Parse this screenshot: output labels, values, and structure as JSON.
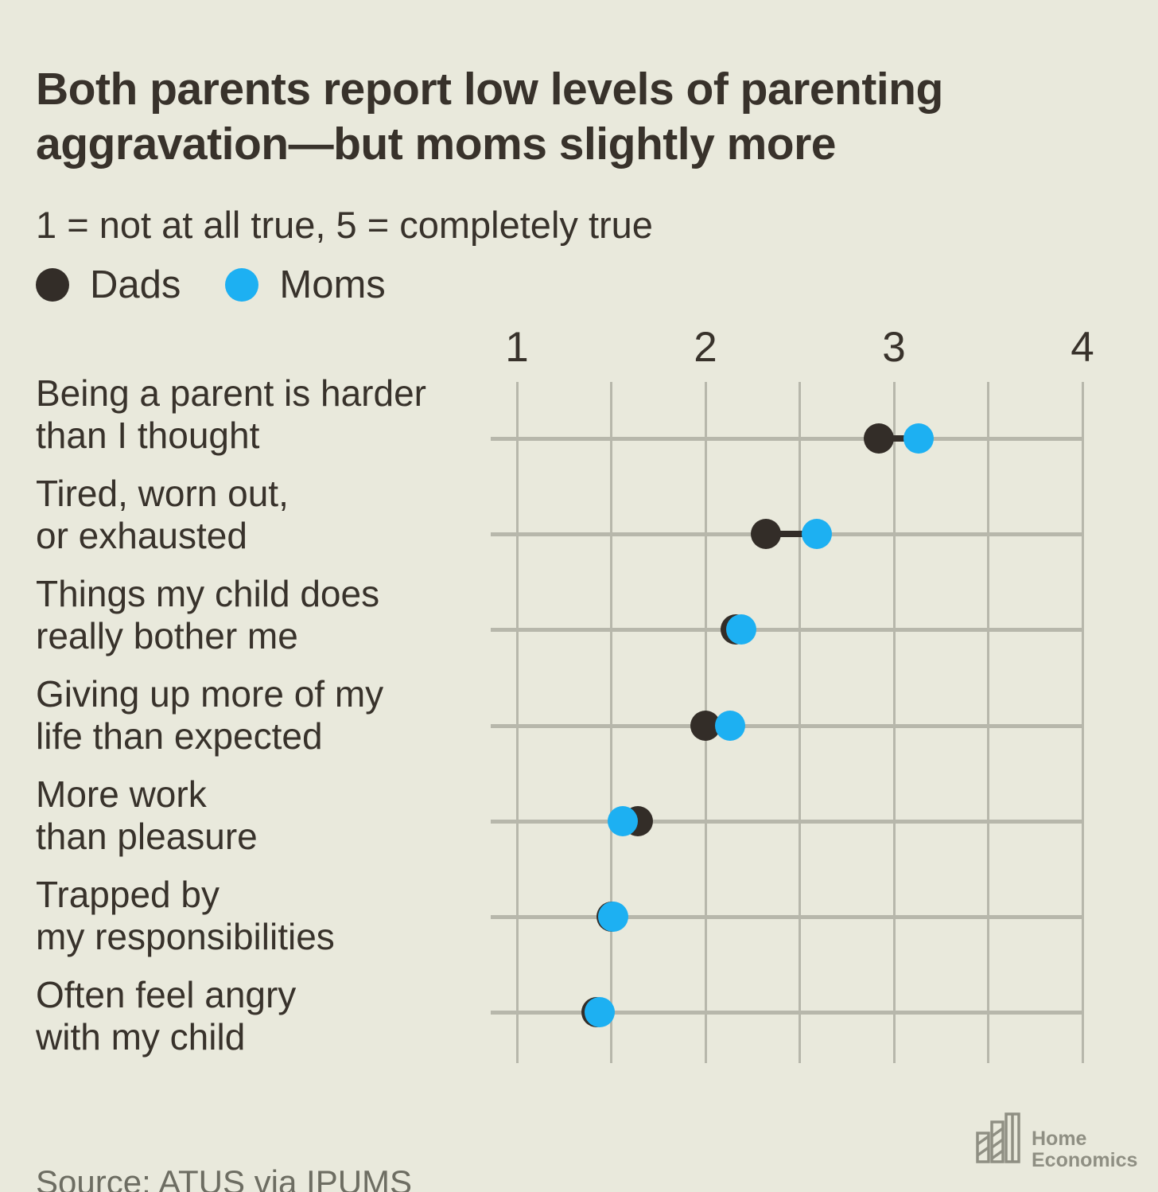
{
  "title": {
    "line1": "Both parents report low levels of parenting",
    "line2": "aggravation—but moms slightly more"
  },
  "subtitle": "1 = not at all true, 5 = completely true",
  "legend": [
    {
      "label": "Dads",
      "color": "#332d28"
    },
    {
      "label": "Moms",
      "color": "#1db0f2"
    }
  ],
  "source": "Source: ATUS via IPUMS",
  "logo": {
    "line1": "Home",
    "line2": "Economics"
  },
  "colors": {
    "background": "#e9e9dc",
    "text": "#38322b",
    "gridline": "#b7b7ab",
    "dads": "#332d28",
    "moms": "#1db0f2",
    "source_text": "#6d6d62",
    "logo_gray": "#8f8f83"
  },
  "chart_data": {
    "type": "scatter",
    "subtype": "horizontal-dumbbell-dot-plot",
    "title": "Both parents report low levels of parenting aggravation—but moms slightly more",
    "subtitle": "1 = not at all true, 5 = completely true",
    "categories": [
      [
        "Being a parent is harder",
        "than I thought"
      ],
      [
        "Tired, worn out,",
        "or exhausted"
      ],
      [
        "Things my child does",
        "really bother me"
      ],
      [
        "Giving up more of my",
        "life than expected"
      ],
      [
        "More work",
        "than pleasure"
      ],
      [
        "Trapped by",
        "my responsibilities"
      ],
      [
        "Often feel angry",
        "with my child"
      ]
    ],
    "series": [
      {
        "name": "Dads",
        "color": "#332d28",
        "values": [
          2.92,
          2.32,
          2.16,
          2.0,
          1.64,
          1.5,
          1.42
        ]
      },
      {
        "name": "Moms",
        "color": "#1db0f2",
        "values": [
          3.13,
          2.59,
          2.19,
          2.13,
          1.56,
          1.51,
          1.44
        ]
      }
    ],
    "x_axis": {
      "min": 1,
      "max": 4,
      "ticks": [
        1,
        2,
        3,
        4
      ],
      "gridline_step": 0.5,
      "position": "top"
    },
    "grid": true,
    "legend_position": "top-left"
  }
}
